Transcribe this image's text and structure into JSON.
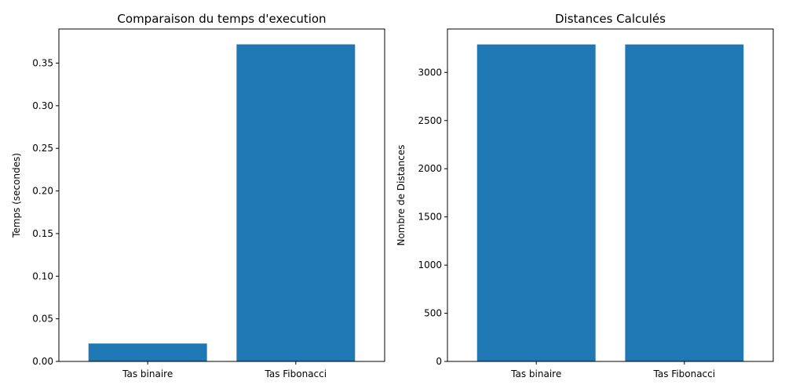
{
  "chart_data": [
    {
      "type": "bar",
      "title": "Comparaison du temps d'execution",
      "xlabel": "",
      "ylabel": "Temps (secondes)",
      "categories": [
        "Tas binaire",
        "Tas Fibonacci"
      ],
      "values": [
        0.021,
        0.372
      ],
      "ylim": [
        0,
        0.39
      ],
      "yticks": [
        0.0,
        0.05,
        0.1,
        0.15,
        0.2,
        0.25,
        0.3,
        0.35
      ],
      "ytick_labels": [
        "0.00",
        "0.05",
        "0.10",
        "0.15",
        "0.20",
        "0.25",
        "0.30",
        "0.35"
      ],
      "bar_color": "#1f77b4",
      "grid": false
    },
    {
      "type": "bar",
      "title": "Distances Calculés",
      "xlabel": "",
      "ylabel": "Nombre de Distances",
      "categories": [
        "Tas binaire",
        "Tas Fibonacci"
      ],
      "values": [
        3290,
        3290
      ],
      "ylim": [
        0,
        3450
      ],
      "yticks": [
        0,
        500,
        1000,
        1500,
        2000,
        2500,
        3000
      ],
      "ytick_labels": [
        "0",
        "500",
        "1000",
        "1500",
        "2000",
        "2500",
        "3000"
      ],
      "bar_color": "#1f77b4",
      "grid": false
    }
  ]
}
